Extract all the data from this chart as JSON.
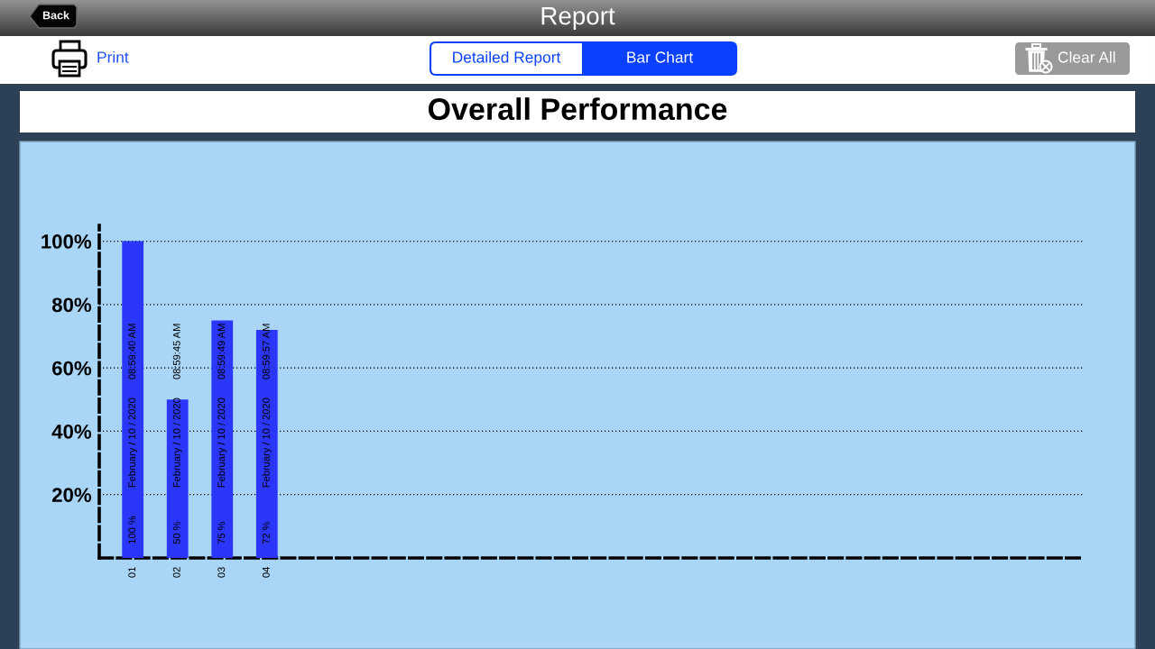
{
  "chart_data": {
    "type": "bar",
    "title": "Overall Performance",
    "categories": [
      "01",
      "02",
      "03",
      "04",
      null,
      null,
      null,
      null,
      null,
      null,
      null,
      null,
      null,
      null,
      null,
      null,
      null,
      null,
      null,
      null,
      null,
      null
    ],
    "values": [
      100,
      50,
      75,
      72,
      null,
      null,
      null,
      null,
      null,
      null,
      null,
      null,
      null,
      null,
      null,
      null,
      null,
      null,
      null,
      null,
      null,
      null
    ],
    "color": "#2a36fa",
    "value_labels": [
      "100 %",
      "50 %",
      "75 %",
      "72 %",
      null,
      null,
      null,
      null,
      null,
      null,
      null,
      null,
      null,
      null,
      null,
      null,
      null,
      null,
      null,
      null,
      null,
      null
    ],
    "ylim": [
      0,
      105
    ],
    "yticks": [
      {
        "value": 20,
        "label": "20%"
      },
      {
        "value": 40,
        "label": "40%"
      },
      {
        "value": 60,
        "label": "60%"
      },
      {
        "value": 80,
        "label": "80%"
      },
      {
        "value": 100,
        "label": "100%"
      }
    ],
    "grid": "y",
    "annotations": [
      "Report",
      "Back",
      "Print",
      "Detailed Report",
      "Bar Chart",
      "Clear All",
      "February / 10 / 2020",
      "08:59:40 AM",
      "February / 10 / 2020",
      "08:59:45 AM",
      "February / 10 / 2020",
      "08:59:49 AM",
      "February / 10 / 2020",
      "08:59:57 AM"
    ]
  }
}
